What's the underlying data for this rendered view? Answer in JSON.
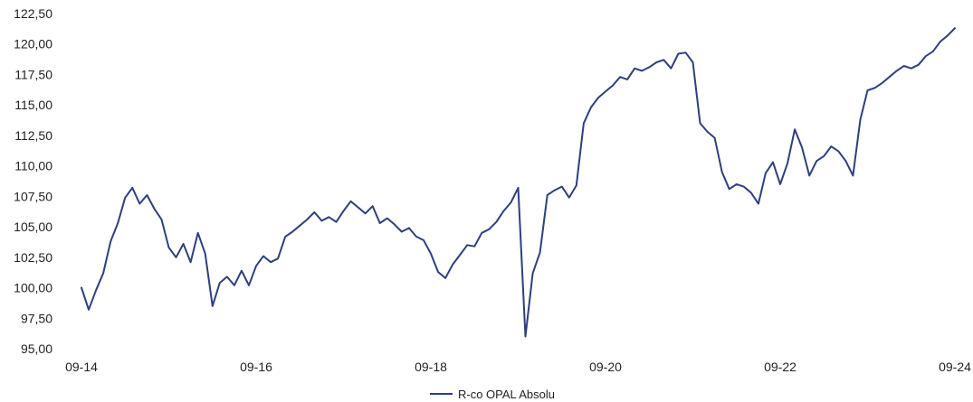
{
  "chart_data": {
    "type": "line",
    "title": "",
    "xlabel": "",
    "ylabel": "",
    "ylim": [
      95,
      122.5
    ],
    "y_ticks": [
      "95,00",
      "97,50",
      "100,00",
      "102,50",
      "105,00",
      "107,50",
      "110,00",
      "112,50",
      "115,00",
      "117,50",
      "120,00",
      "122,50"
    ],
    "x_ticks": [
      "09-14",
      "09-16",
      "09-18",
      "09-20",
      "09-22",
      "09-24"
    ],
    "grid": false,
    "legend_position": "bottom-center",
    "series": [
      {
        "name": "R-co OPAL Absolu",
        "color": "#2e3f7f",
        "x": [
          "2014-09",
          "2014-10",
          "2014-11",
          "2014-12",
          "2015-01",
          "2015-02",
          "2015-03",
          "2015-04",
          "2015-05",
          "2015-06",
          "2015-07",
          "2015-08",
          "2015-09",
          "2015-10",
          "2015-11",
          "2015-12",
          "2016-01",
          "2016-02",
          "2016-03",
          "2016-04",
          "2016-05",
          "2016-06",
          "2016-07",
          "2016-08",
          "2016-09",
          "2016-10",
          "2016-11",
          "2016-12",
          "2017-01",
          "2017-02",
          "2017-03",
          "2017-04",
          "2017-05",
          "2017-06",
          "2017-07",
          "2017-08",
          "2017-09",
          "2017-10",
          "2017-11",
          "2017-12",
          "2018-01",
          "2018-02",
          "2018-03",
          "2018-04",
          "2018-05",
          "2018-06",
          "2018-07",
          "2018-08",
          "2018-09",
          "2018-10",
          "2018-11",
          "2018-12",
          "2019-01",
          "2019-02",
          "2019-03",
          "2019-04",
          "2019-05",
          "2019-06",
          "2019-07",
          "2019-08",
          "2019-09",
          "2019-10",
          "2019-11",
          "2019-12",
          "2020-01",
          "2020-02",
          "2020-03",
          "2020-04",
          "2020-05",
          "2020-06",
          "2020-07",
          "2020-08",
          "2020-09",
          "2020-10",
          "2020-11",
          "2020-12",
          "2021-01",
          "2021-02",
          "2021-03",
          "2021-04",
          "2021-05",
          "2021-06",
          "2021-07",
          "2021-08",
          "2021-09",
          "2021-10",
          "2021-11",
          "2021-12",
          "2022-01",
          "2022-02",
          "2022-03",
          "2022-04",
          "2022-05",
          "2022-06",
          "2022-07",
          "2022-08",
          "2022-09",
          "2022-10",
          "2022-11",
          "2022-12",
          "2023-01",
          "2023-02",
          "2023-03",
          "2023-04",
          "2023-05",
          "2023-06",
          "2023-07",
          "2023-08",
          "2023-09",
          "2023-10",
          "2023-11",
          "2023-12",
          "2024-01",
          "2024-02",
          "2024-03",
          "2024-04",
          "2024-05",
          "2024-06",
          "2024-07",
          "2024-08",
          "2024-09"
        ],
        "values": [
          100.0,
          98.2,
          99.8,
          101.2,
          103.8,
          105.3,
          107.4,
          108.2,
          106.9,
          107.6,
          106.5,
          105.6,
          103.3,
          102.5,
          103.6,
          102.1,
          104.5,
          102.8,
          98.5,
          100.4,
          100.9,
          100.2,
          101.4,
          100.2,
          101.8,
          102.6,
          102.1,
          102.4,
          104.2,
          104.6,
          105.1,
          105.6,
          106.2,
          105.5,
          105.8,
          105.4,
          106.3,
          107.1,
          106.6,
          106.1,
          106.7,
          105.3,
          105.7,
          105.2,
          104.6,
          104.9,
          104.2,
          103.9,
          102.8,
          101.3,
          100.8,
          101.9,
          102.7,
          103.5,
          103.4,
          104.5,
          104.8,
          105.4,
          106.3,
          107.0,
          108.2,
          96.0,
          101.2,
          102.9,
          107.6,
          108.0,
          108.3,
          107.4,
          108.4,
          113.5,
          114.8,
          115.6,
          116.1,
          116.6,
          117.3,
          117.1,
          118.0,
          117.8,
          118.1,
          118.5,
          118.7,
          118.0,
          119.2,
          119.3,
          118.5,
          113.5,
          112.8,
          112.3,
          109.5,
          108.1,
          108.5,
          108.3,
          107.8,
          106.9,
          109.4,
          110.3,
          108.5,
          110.2,
          113.0,
          111.5,
          109.2,
          110.4,
          110.8,
          111.6,
          111.2,
          110.4,
          109.2,
          113.8,
          116.2,
          116.4,
          116.8,
          117.3,
          117.8,
          118.2,
          118.0,
          118.3,
          119.0,
          119.4,
          120.2,
          120.7,
          121.3
        ]
      }
    ]
  }
}
